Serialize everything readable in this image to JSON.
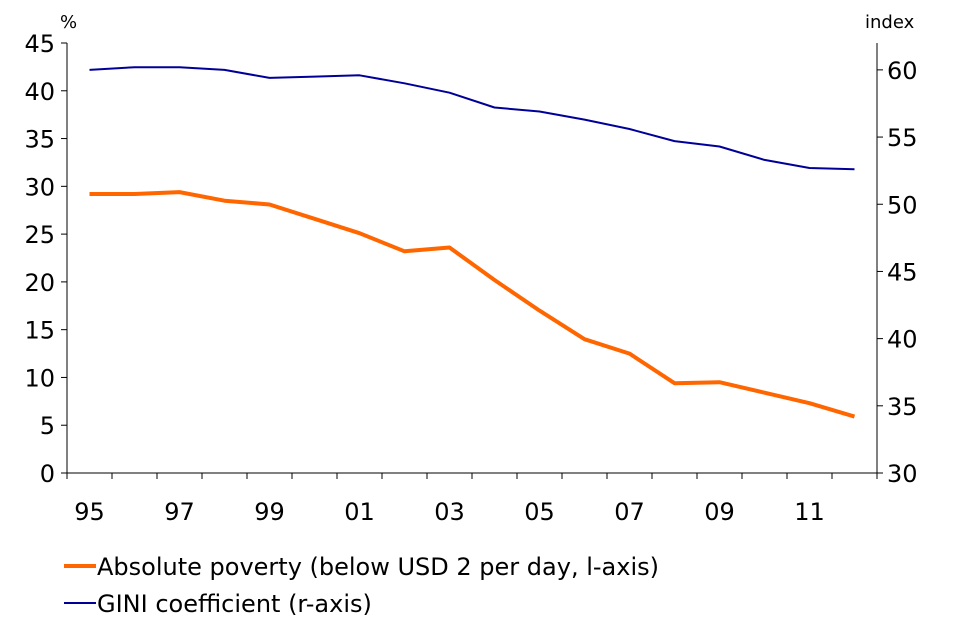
{
  "chart_data": {
    "type": "line",
    "left_axis": {
      "unit": "%",
      "ylim": [
        0,
        45
      ],
      "ticks": [
        "0",
        "5",
        "10",
        "15",
        "20",
        "25",
        "30",
        "35",
        "40",
        "45"
      ]
    },
    "right_axis": {
      "unit": "index",
      "ylim": [
        30,
        62
      ],
      "ticks": [
        "30",
        "35",
        "40",
        "45",
        "50",
        "55",
        "60"
      ]
    },
    "x_axis": {
      "xlim": [
        1995,
        2013
      ],
      "tick_labels": [
        {
          "year": 1995.5,
          "label": "95"
        },
        {
          "year": 1997.5,
          "label": "97"
        },
        {
          "year": 1999.5,
          "label": "99"
        },
        {
          "year": 2001.5,
          "label": "01"
        },
        {
          "year": 2003.5,
          "label": "03"
        },
        {
          "year": 2005.5,
          "label": "05"
        },
        {
          "year": 2007.5,
          "label": "07"
        },
        {
          "year": 2009.5,
          "label": "09"
        },
        {
          "year": 2011.5,
          "label": "11"
        }
      ]
    },
    "series": [
      {
        "name": "Absolute poverty (below USD 2 per day, l-axis)",
        "axis": "left",
        "color": "#FF6600",
        "x": [
          1995.5,
          1996.5,
          1997.5,
          1998.5,
          1999.5,
          2000.5,
          2001.5,
          2002.5,
          2003.5,
          2004.5,
          2005.5,
          2006.5,
          2007.5,
          2008.5,
          2009.5,
          2010.5,
          2011.5,
          2012.5
        ],
        "values": [
          29.2,
          29.2,
          29.4,
          28.5,
          28.1,
          26.6,
          25.1,
          23.2,
          23.6,
          20.2,
          17.0,
          14.0,
          12.5,
          9.4,
          9.5,
          8.4,
          7.3,
          5.9
        ]
      },
      {
        "name": "GINI coefficient (r-axis)",
        "axis": "right",
        "color": "#000099",
        "x": [
          1995.5,
          1996.5,
          1997.5,
          1998.5,
          1999.5,
          2000.5,
          2001.5,
          2002.5,
          2003.5,
          2004.5,
          2005.5,
          2006.5,
          2007.5,
          2008.5,
          2009.5,
          2010.5,
          2011.5,
          2012.5
        ],
        "values": [
          60.0,
          60.2,
          60.2,
          60.0,
          59.4,
          59.5,
          59.6,
          59.0,
          58.3,
          57.2,
          56.9,
          56.3,
          55.6,
          54.7,
          54.3,
          53.3,
          52.7,
          52.6
        ]
      }
    ],
    "legend": {
      "placement": "bottom-left",
      "items": [
        "Absolute poverty (below USD 2 per day, l-axis)",
        "GINI coefficient (r-axis)"
      ]
    },
    "grid": false
  }
}
